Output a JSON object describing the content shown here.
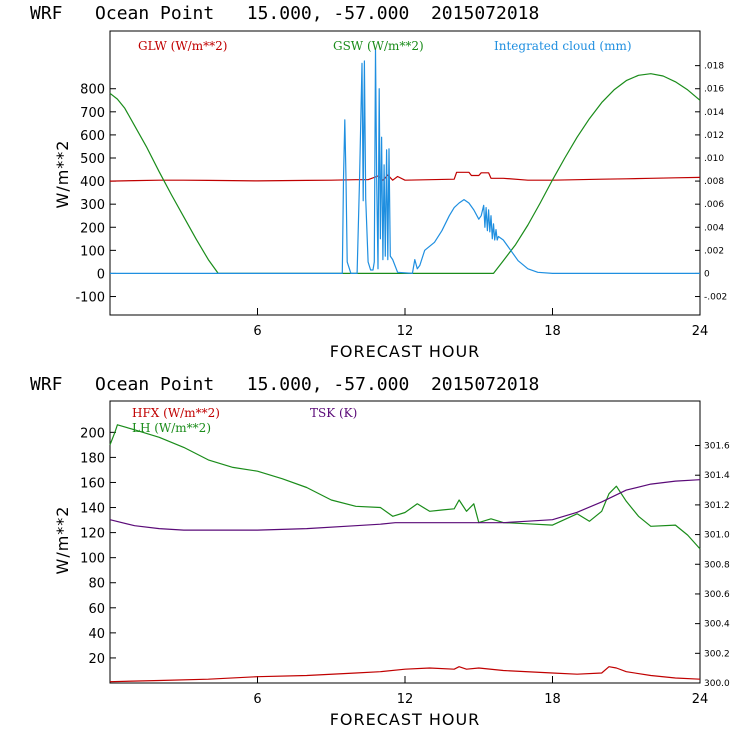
{
  "chart_data": [
    {
      "type": "line",
      "title": "WRF   Ocean Point   15.000, -57.000  2015072018",
      "xlabel": "FORECAST HOUR",
      "ylabel": "W/m**2",
      "xlim": [
        0,
        24
      ],
      "ylim": [
        -180,
        1050
      ],
      "xticks": [
        6,
        12,
        18,
        24
      ],
      "yticks": [
        -100,
        0,
        100,
        200,
        300,
        400,
        500,
        600,
        700,
        800
      ],
      "ytick_labels": [
        "-100",
        "0",
        "100",
        "200",
        "300",
        "400",
        "500",
        "600",
        "700",
        "800"
      ],
      "y2lim": [
        -0.0036,
        0.021
      ],
      "y2ticks": [
        -0.002,
        0,
        0.002,
        0.004,
        0.006,
        0.008,
        0.01,
        0.012,
        0.014,
        0.016,
        0.018
      ],
      "y2tick_labels": [
        "-.002",
        "0",
        ".002",
        ".004",
        ".006",
        ".008",
        ".010",
        ".012",
        ".014",
        ".016",
        ".018"
      ],
      "series": [
        {
          "name": "GLW (W/m**2)",
          "color": "#c00000",
          "axis": "left",
          "x": [
            0,
            1,
            2,
            3,
            4,
            5,
            6,
            7,
            8,
            9,
            10,
            10.5,
            10.9,
            11.1,
            11.3,
            11.5,
            11.7,
            12,
            13,
            14,
            14.1,
            14.6,
            14.7,
            15,
            15.1,
            15.4,
            15.5,
            16,
            17,
            18,
            19,
            20,
            21,
            22,
            23,
            24
          ],
          "y": [
            400,
            402,
            404,
            404,
            403,
            402,
            401,
            402,
            403,
            404,
            406,
            406,
            422,
            404,
            426,
            404,
            420,
            404,
            406,
            408,
            438,
            438,
            424,
            424,
            436,
            436,
            412,
            412,
            404,
            404,
            406,
            408,
            410,
            412,
            414,
            416
          ]
        },
        {
          "name": "GSW (W/m**2)",
          "color": "#1a8c1a",
          "axis": "left",
          "x": [
            0,
            0.3,
            0.6,
            1,
            1.5,
            2,
            2.5,
            3,
            3.5,
            4,
            4.4,
            5,
            6,
            8,
            10,
            12,
            14,
            15.6,
            16,
            16.5,
            17,
            17.5,
            18,
            18.5,
            19,
            19.5,
            20,
            20.5,
            21,
            21.5,
            22,
            22.5,
            23,
            23.5,
            24
          ],
          "y": [
            780,
            755,
            715,
            640,
            545,
            440,
            340,
            245,
            150,
            60,
            0,
            0,
            0,
            0,
            0,
            0,
            0,
            0,
            55,
            125,
            210,
            305,
            405,
            500,
            590,
            670,
            740,
            795,
            835,
            858,
            865,
            855,
            830,
            795,
            750
          ]
        },
        {
          "name": "Integrated cloud (mm)",
          "color": "#1f8fe0",
          "axis": "right",
          "x": [
            0,
            9.3,
            9.45,
            9.5,
            9.55,
            9.6,
            9.65,
            9.8,
            10.05,
            10.15,
            10.25,
            10.3,
            10.35,
            10.4,
            10.5,
            10.6,
            10.7,
            10.75,
            10.8,
            10.85,
            10.9,
            10.95,
            11,
            11.05,
            11.1,
            11.15,
            11.2,
            11.25,
            11.3,
            11.35,
            11.4,
            11.5,
            11.7,
            12.3,
            12.4,
            12.5,
            12.6,
            12.8,
            13.2,
            13.5,
            13.8,
            14,
            14.2,
            14.4,
            14.6,
            14.8,
            15,
            15.1,
            15.2,
            15.25,
            15.3,
            15.35,
            15.4,
            15.45,
            15.5,
            15.55,
            15.6,
            15.65,
            15.7,
            15.75,
            15.8,
            16,
            16.3,
            16.6,
            17,
            17.4,
            18,
            20,
            22,
            24
          ],
          "y": [
            0,
            0,
            0,
            0.0082,
            0.0133,
            0.0082,
            0.001,
            0,
            0,
            0.008,
            0.0182,
            0.0063,
            0.0184,
            0.0065,
            0.001,
            0.0003,
            0.0003,
            0.001,
            0.0194,
            0.008,
            0.0004,
            0.016,
            0.003,
            0.0118,
            0.0012,
            0.0094,
            0.0015,
            0.0107,
            0.0012,
            0.0108,
            0.0015,
            0.0012,
            0.0001,
            0,
            0.0012,
            0.0004,
            0.0007,
            0.002,
            0.0027,
            0.0037,
            0.005,
            0.0057,
            0.0061,
            0.0064,
            0.0061,
            0.0055,
            0.0047,
            0.005,
            0.0059,
            0.004,
            0.0057,
            0.0037,
            0.0055,
            0.0036,
            0.005,
            0.003,
            0.0043,
            0.0029,
            0.0038,
            0.0029,
            0.0032,
            0.0029,
            0.002,
            0.0011,
            0.0004,
            0.0001,
            0,
            0,
            0,
            0
          ]
        }
      ]
    },
    {
      "type": "line",
      "title": "WRF   Ocean Point   15.000, -57.000  2015072018",
      "xlabel": "FORECAST HOUR",
      "ylabel": "W/m**2",
      "xlim": [
        0,
        24
      ],
      "ylim": [
        0,
        225
      ],
      "xticks": [
        6,
        12,
        18,
        24
      ],
      "yticks": [
        20,
        40,
        60,
        80,
        100,
        120,
        140,
        160,
        180,
        200
      ],
      "ytick_labels": [
        "20",
        "40",
        "60",
        "80",
        "100",
        "120",
        "140",
        "160",
        "180",
        "200"
      ],
      "y2lim": [
        300.0,
        301.9
      ],
      "y2ticks": [
        300.0,
        300.2,
        300.4,
        300.6,
        300.8,
        301.0,
        301.2,
        301.4,
        301.6
      ],
      "y2tick_labels": [
        "300.0",
        "300.2",
        "300.4",
        "300.6",
        "300.8",
        "301.0",
        "301.2",
        "301.4",
        "301.6"
      ],
      "series": [
        {
          "name": "HFX (W/m**2)",
          "color": "#c00000",
          "axis": "left",
          "x": [
            0,
            2,
            4,
            6,
            8,
            10,
            11,
            12,
            13,
            14,
            14.2,
            14.5,
            15,
            16,
            18,
            19,
            20,
            20.3,
            20.6,
            21,
            22,
            23,
            24
          ],
          "y": [
            1,
            2,
            3,
            5,
            6,
            8,
            9,
            11,
            12,
            11,
            13,
            11,
            12,
            10,
            8,
            7,
            8,
            13,
            12,
            9,
            6,
            4,
            3
          ]
        },
        {
          "name": "LH (W/m**2)",
          "color": "#1a8c1a",
          "axis": "left",
          "x": [
            0,
            0.2,
            0.3,
            1,
            2,
            3,
            4,
            5,
            6,
            7,
            8,
            9,
            10,
            11,
            11.5,
            12,
            12.5,
            13,
            13.5,
            14,
            14.2,
            14.5,
            14.8,
            15,
            15.5,
            16,
            17,
            18,
            19,
            19.5,
            20,
            20.3,
            20.6,
            21,
            21.5,
            22,
            23,
            23.5,
            24
          ],
          "y": [
            190,
            200,
            206,
            202,
            196,
            188,
            178,
            172,
            169,
            163,
            156,
            146,
            141,
            140,
            133,
            136,
            143,
            137,
            138,
            139,
            146,
            137,
            143,
            128,
            131,
            128,
            127,
            126,
            135,
            129,
            137,
            151,
            157,
            145,
            133,
            125,
            126,
            118,
            107
          ]
        },
        {
          "name": "TSK (K)",
          "color": "#5a0a78",
          "axis": "right",
          "x": [
            0,
            1,
            2,
            3,
            4,
            6,
            8,
            10,
            11,
            11.6,
            12,
            13,
            14,
            15,
            16,
            17,
            18,
            19,
            20,
            21,
            22,
            23,
            24
          ],
          "y": [
            301.1,
            301.06,
            301.04,
            301.03,
            301.03,
            301.03,
            301.04,
            301.06,
            301.07,
            301.08,
            301.08,
            301.08,
            301.08,
            301.08,
            301.08,
            301.09,
            301.1,
            301.15,
            301.22,
            301.3,
            301.34,
            301.36,
            301.37
          ]
        }
      ]
    }
  ]
}
